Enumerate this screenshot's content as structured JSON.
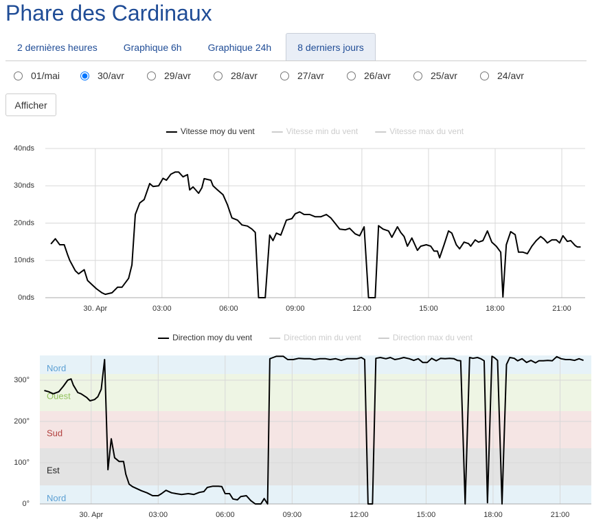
{
  "header": {
    "title": "Phare des Cardinaux"
  },
  "tabs": [
    "2 dernières heures",
    "Graphique 6h",
    "Graphique 24h",
    "8 derniers jours"
  ],
  "active_tab": 3,
  "dates": [
    "01/mai",
    "30/avr",
    "29/avr",
    "28/avr",
    "27/avr",
    "26/avr",
    "25/avr",
    "24/avr"
  ],
  "selected_date": 1,
  "button": "Afficher",
  "chart_data": [
    {
      "type": "line",
      "x": [
        -2.0,
        -1.8,
        -1.6,
        -1.4,
        -1.25,
        -1.15,
        -0.9,
        -0.75,
        -0.5,
        -0.35,
        -0.15,
        0.05,
        0.3,
        0.45,
        0.75,
        1.0,
        1.2,
        1.5,
        1.65,
        1.8,
        2.0,
        2.2,
        2.45,
        2.6,
        2.85,
        3.05,
        3.2,
        3.4,
        3.6,
        3.75,
        3.95,
        4.15,
        4.25,
        4.4,
        4.65,
        4.8,
        4.9,
        5.2,
        5.3,
        5.5,
        5.75,
        5.95,
        6.15,
        6.4,
        6.6,
        6.85,
        7.05,
        7.2,
        7.35,
        7.65,
        7.85,
        8.0,
        8.15,
        8.35,
        8.6,
        8.85,
        9.0,
        9.2,
        9.4,
        9.65,
        9.9,
        10.15,
        10.4,
        10.6,
        10.8,
        11.0,
        11.25,
        11.45,
        11.7,
        11.9,
        12.1,
        12.3,
        12.6,
        12.75,
        12.95,
        13.2,
        13.35,
        13.6,
        13.75,
        13.9,
        14.05,
        14.25,
        14.5,
        14.65,
        14.9,
        15.1,
        15.25,
        15.4,
        15.5,
        15.7,
        15.9,
        16.05,
        16.25,
        16.4,
        16.6,
        16.8,
        16.9,
        17.1,
        17.25,
        17.45,
        17.65,
        17.85,
        18.05,
        18.25,
        18.35,
        18.5,
        18.7,
        18.9,
        19.05,
        19.25,
        19.45,
        19.65,
        19.85,
        20.05,
        20.2,
        20.35,
        20.55,
        20.75,
        20.9,
        21.05,
        21.25,
        21.4,
        21.6,
        21.7,
        21.85
      ],
      "series": [
        {
          "name": "Vitesse moy du vent",
          "color": "#000000",
          "visible": true,
          "values": [
            14.4,
            15.8,
            14.2,
            14.2,
            11.6,
            10,
            7.2,
            6.4,
            7.5,
            4.6,
            3.5,
            2.4,
            1.3,
            0.9,
            1.3,
            2.8,
            2.8,
            5.2,
            8.8,
            22.3,
            25.4,
            26.3,
            30.6,
            29.8,
            30,
            32,
            31.5,
            33.1,
            33.7,
            33.7,
            32.4,
            33,
            28.9,
            29.7,
            28,
            29.5,
            31.9,
            31.5,
            30,
            28.9,
            27.6,
            24.9,
            21.4,
            20.8,
            19.5,
            19.2,
            18.4,
            17.5,
            0,
            0,
            16.8,
            15.3,
            17.3,
            16.8,
            20.8,
            21.2,
            22.5,
            23,
            22.3,
            22.3,
            21.7,
            21.7,
            22.3,
            21.4,
            19.9,
            18.4,
            18.2,
            18.6,
            17.1,
            16.6,
            19,
            0,
            0,
            19.3,
            18.4,
            17.9,
            16.2,
            19,
            17.5,
            16.4,
            13.8,
            16,
            12.7,
            13.8,
            14.2,
            13.8,
            12.5,
            12.5,
            10.7,
            14.2,
            17.9,
            17.3,
            14.2,
            13.1,
            14.9,
            14.5,
            13.8,
            15.5,
            14.9,
            15.3,
            17.9,
            14.9,
            13.8,
            12.2,
            0.2,
            14.2,
            17.7,
            16.9,
            12.2,
            12.2,
            11.8,
            13.8,
            15.3,
            16.4,
            15.7,
            14.7,
            15.5,
            15.5,
            14.7,
            16.6,
            15.1,
            15.3,
            14,
            13.6,
            13.6
          ]
        },
        {
          "name": "Vitesse min du vent",
          "color": "#cccccc",
          "visible": false
        },
        {
          "name": "Vitesse max du vent",
          "color": "#cccccc",
          "visible": false
        }
      ],
      "xlim": [
        -2.25,
        22.05
      ],
      "xticks": [
        {
          "value": 0,
          "label": "30. Apr"
        },
        {
          "value": 3,
          "label": "03:00"
        },
        {
          "value": 6,
          "label": "06:00"
        },
        {
          "value": 9,
          "label": "09:00"
        },
        {
          "value": 12,
          "label": "12:00"
        },
        {
          "value": 15,
          "label": "15:00"
        },
        {
          "value": 18,
          "label": "18:00"
        },
        {
          "value": 21,
          "label": "21:00"
        }
      ],
      "ylim": [
        0,
        40
      ],
      "yticks": [
        {
          "value": 0,
          "label": "0nds"
        },
        {
          "value": 10,
          "label": "10nds"
        },
        {
          "value": 20,
          "label": "20nds"
        },
        {
          "value": 30,
          "label": "30nds"
        },
        {
          "value": 40,
          "label": "40nds"
        }
      ],
      "grid": true,
      "legend": "top"
    },
    {
      "type": "line",
      "x": [
        -2.1,
        -1.9,
        -1.7,
        -1.45,
        -1.25,
        -1.05,
        -0.9,
        -0.8,
        -0.6,
        -0.45,
        -0.2,
        -0.05,
        0.15,
        0.3,
        0.45,
        0.6,
        0.75,
        0.9,
        1.05,
        1.25,
        1.45,
        1.55,
        1.7,
        1.85,
        2.05,
        2.25,
        2.5,
        2.75,
        3.0,
        3.15,
        3.35,
        3.6,
        3.8,
        4.05,
        4.35,
        4.6,
        4.85,
        5.05,
        5.2,
        5.45,
        5.7,
        5.85,
        6.0,
        6.2,
        6.35,
        6.55,
        6.7,
        6.95,
        7.15,
        7.35,
        7.6,
        7.75,
        7.9,
        8.0,
        8.15,
        8.3,
        8.45,
        8.6,
        8.8,
        9.05,
        9.3,
        9.55,
        9.8,
        10.0,
        10.25,
        10.5,
        10.7,
        10.95,
        11.2,
        11.45,
        11.7,
        11.9,
        12.1,
        12.25,
        12.4,
        12.6,
        12.75,
        12.95,
        13.2,
        13.4,
        13.6,
        13.8,
        14.0,
        14.25,
        14.45,
        14.65,
        14.85,
        15.05,
        15.25,
        15.45,
        15.65,
        15.85,
        16.05,
        16.25,
        16.4,
        16.55,
        16.75,
        16.95,
        17.1,
        17.3,
        17.45,
        17.6,
        17.75,
        17.95,
        18.05,
        18.2,
        18.4,
        18.6,
        18.75,
        18.95,
        19.1,
        19.3,
        19.5,
        19.7,
        19.9,
        20.05,
        20.25,
        20.45,
        20.65,
        20.85,
        21.05,
        21.25,
        21.45,
        21.65,
        21.85,
        22.05
      ],
      "series": [
        {
          "name": "Direction moy du vent",
          "color": "#000000",
          "visible": true,
          "values": [
            275,
            272,
            267,
            272,
            285,
            300,
            303,
            288,
            270,
            267,
            258,
            250,
            253,
            260,
            278,
            350,
            83,
            158,
            112,
            103,
            103,
            72,
            48,
            42,
            37,
            32,
            27,
            20,
            20,
            25,
            33,
            27,
            25,
            23,
            25,
            23,
            28,
            30,
            40,
            43,
            43,
            42,
            25,
            25,
            12,
            10,
            18,
            20,
            8,
            0,
            0,
            13,
            0,
            352,
            355,
            358,
            358,
            358,
            350,
            350,
            353,
            352,
            352,
            350,
            352,
            352,
            350,
            352,
            348,
            352,
            352,
            352,
            355,
            350,
            0,
            0,
            353,
            355,
            352,
            355,
            350,
            352,
            355,
            352,
            348,
            352,
            343,
            343,
            353,
            347,
            353,
            352,
            353,
            352,
            348,
            347,
            0,
            355,
            353,
            355,
            352,
            347,
            3,
            358,
            355,
            348,
            0,
            338,
            355,
            353,
            347,
            352,
            343,
            348,
            342,
            347,
            347,
            348,
            347,
            357,
            352,
            350,
            350,
            348,
            352,
            348
          ]
        },
        {
          "name": "Direction min du vent",
          "color": "#cccccc",
          "visible": false
        },
        {
          "name": "Direction max du vent",
          "color": "#cccccc",
          "visible": false
        }
      ],
      "bands": [
        {
          "from": 315,
          "to": 360,
          "label": "Nord",
          "color": "#e6f2f8",
          "label_color": "#5b9fd3"
        },
        {
          "from": 225,
          "to": 315,
          "label": "Ouest",
          "color": "#eef5e4",
          "label_color": "#93c25e"
        },
        {
          "from": 135,
          "to": 225,
          "label": "Sud",
          "color": "#f5e5e4",
          "label_color": "#b2403e"
        },
        {
          "from": 45,
          "to": 135,
          "label": "Est",
          "color": "#e3e3e3",
          "label_color": "#222222"
        },
        {
          "from": 0,
          "to": 45,
          "label": "Nord",
          "color": "#e6f2f8",
          "label_color": "#5b9fd3"
        }
      ],
      "xlim": [
        -2.3,
        22.4
      ],
      "xticks": [
        {
          "value": 0,
          "label": "30. Apr"
        },
        {
          "value": 3,
          "label": "03:00"
        },
        {
          "value": 6,
          "label": "06:00"
        },
        {
          "value": 9,
          "label": "09:00"
        },
        {
          "value": 12,
          "label": "12:00"
        },
        {
          "value": 15,
          "label": "15:00"
        },
        {
          "value": 18,
          "label": "18:00"
        },
        {
          "value": 21,
          "label": "21:00"
        }
      ],
      "ylim": [
        0,
        360
      ],
      "yticks": [
        {
          "value": 0,
          "label": "0°"
        },
        {
          "value": 100,
          "label": "100°"
        },
        {
          "value": 200,
          "label": "200°"
        },
        {
          "value": 300,
          "label": "300°"
        }
      ],
      "grid": true,
      "legend": "top"
    }
  ]
}
